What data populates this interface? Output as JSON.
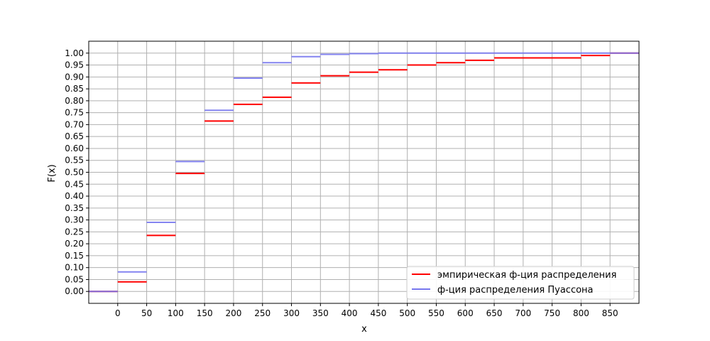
{
  "chart_data": {
    "type": "line",
    "title": "",
    "xlabel": "x",
    "ylabel": "F(x)",
    "xlim": [
      -50,
      900
    ],
    "ylim": [
      -0.05,
      1.05
    ],
    "x_ticks": [
      0,
      50,
      100,
      150,
      200,
      250,
      300,
      350,
      400,
      450,
      500,
      550,
      600,
      650,
      700,
      750,
      800,
      850
    ],
    "y_ticks": [
      "0.00",
      "0.05",
      "0.10",
      "0.15",
      "0.20",
      "0.25",
      "0.30",
      "0.35",
      "0.40",
      "0.45",
      "0.50",
      "0.55",
      "0.60",
      "0.65",
      "0.70",
      "0.75",
      "0.80",
      "0.85",
      "0.90",
      "0.95",
      "1.00"
    ],
    "grid": true,
    "legend_position": "bottom-right",
    "series": [
      {
        "name": "эмпирическая ф-ция распределения",
        "color": "#ff0000",
        "style": "step",
        "segments": [
          {
            "x0": -50,
            "x1": 0,
            "y": 0.0
          },
          {
            "x0": 0,
            "x1": 50,
            "y": 0.04
          },
          {
            "x0": 50,
            "x1": 100,
            "y": 0.235
          },
          {
            "x0": 100,
            "x1": 150,
            "y": 0.495
          },
          {
            "x0": 150,
            "x1": 200,
            "y": 0.715
          },
          {
            "x0": 200,
            "x1": 250,
            "y": 0.785
          },
          {
            "x0": 250,
            "x1": 300,
            "y": 0.815
          },
          {
            "x0": 300,
            "x1": 350,
            "y": 0.875
          },
          {
            "x0": 350,
            "x1": 400,
            "y": 0.905
          },
          {
            "x0": 400,
            "x1": 450,
            "y": 0.92
          },
          {
            "x0": 450,
            "x1": 500,
            "y": 0.93
          },
          {
            "x0": 500,
            "x1": 550,
            "y": 0.95
          },
          {
            "x0": 550,
            "x1": 600,
            "y": 0.96
          },
          {
            "x0": 600,
            "x1": 650,
            "y": 0.97
          },
          {
            "x0": 650,
            "x1": 800,
            "y": 0.98
          },
          {
            "x0": 800,
            "x1": 850,
            "y": 0.99
          },
          {
            "x0": 850,
            "x1": 900,
            "y": 1.0
          }
        ]
      },
      {
        "name": "ф-ция распределения Пуассона",
        "color": "#7777ee",
        "style": "step",
        "segments": [
          {
            "x0": -50,
            "x1": 0,
            "y": 0.0
          },
          {
            "x0": 0,
            "x1": 50,
            "y": 0.082
          },
          {
            "x0": 50,
            "x1": 100,
            "y": 0.29
          },
          {
            "x0": 100,
            "x1": 150,
            "y": 0.545
          },
          {
            "x0": 150,
            "x1": 200,
            "y": 0.76
          },
          {
            "x0": 200,
            "x1": 250,
            "y": 0.895
          },
          {
            "x0": 250,
            "x1": 300,
            "y": 0.96
          },
          {
            "x0": 300,
            "x1": 350,
            "y": 0.985
          },
          {
            "x0": 350,
            "x1": 400,
            "y": 0.995
          },
          {
            "x0": 400,
            "x1": 450,
            "y": 0.998
          },
          {
            "x0": 450,
            "x1": 900,
            "y": 1.0
          }
        ]
      }
    ]
  }
}
